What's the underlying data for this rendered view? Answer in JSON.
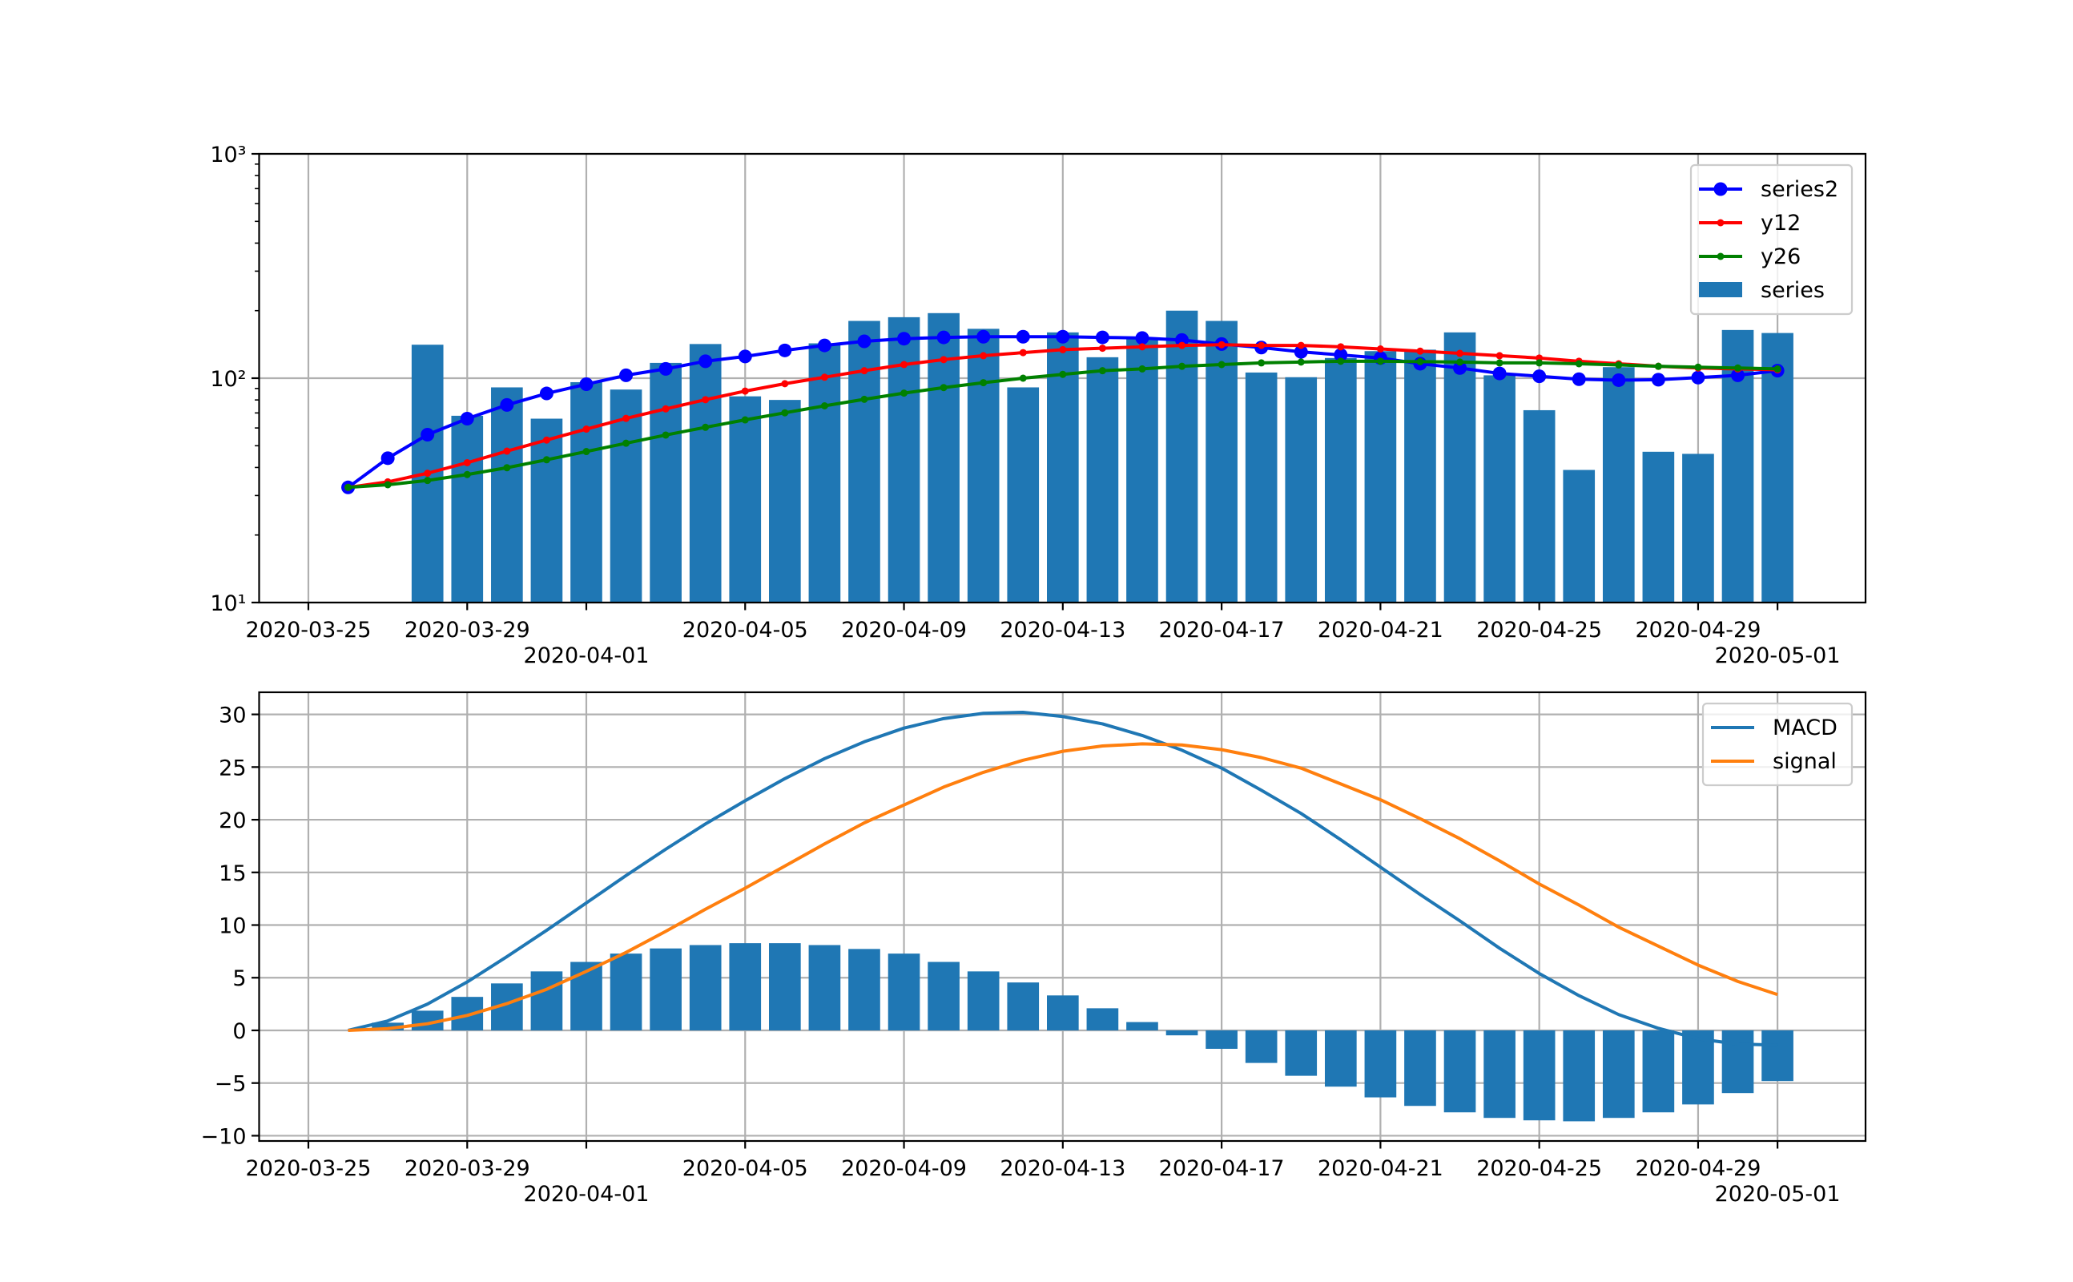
{
  "chart_data": [
    {
      "type": "bar+line",
      "yscale": "log",
      "ylim": [
        10,
        1000
      ],
      "grid": true,
      "legend_position": "top-right",
      "x_tick_labels": [
        "2020-03-25",
        "2020-03-29",
        "2020-04-01",
        "2020-04-05",
        "2020-04-09",
        "2020-04-13",
        "2020-04-17",
        "2020-04-21",
        "2020-04-25",
        "2020-04-29",
        "2020-05-01"
      ],
      "y_ticks": [
        10,
        100,
        1000
      ],
      "y_tick_labels": [
        "10¹",
        "10²",
        "10³"
      ],
      "x": [
        "2020-03-26",
        "2020-03-27",
        "2020-03-28",
        "2020-03-29",
        "2020-03-30",
        "2020-03-31",
        "2020-04-01",
        "2020-04-02",
        "2020-04-03",
        "2020-04-04",
        "2020-04-05",
        "2020-04-06",
        "2020-04-07",
        "2020-04-08",
        "2020-04-09",
        "2020-04-10",
        "2020-04-11",
        "2020-04-12",
        "2020-04-13",
        "2020-04-14",
        "2020-04-15",
        "2020-04-16",
        "2020-04-17",
        "2020-04-18",
        "2020-04-19",
        "2020-04-20",
        "2020-04-21",
        "2020-04-22",
        "2020-04-23",
        "2020-04-24",
        "2020-04-25",
        "2020-04-26",
        "2020-04-27",
        "2020-04-28",
        "2020-04-29",
        "2020-04-30",
        "2020-05-01"
      ],
      "series": [
        {
          "name": "series2",
          "kind": "line",
          "marker": "circle",
          "color": "#0000ff",
          "values": [
            32.6,
            44,
            56,
            66,
            76,
            85.5,
            94,
            103,
            110,
            119,
            125,
            133,
            140,
            146,
            150,
            152,
            153,
            153,
            153,
            152,
            151,
            148,
            142,
            137,
            131,
            127,
            123,
            116,
            111,
            105,
            102,
            99,
            98,
            98.5,
            100.6,
            103,
            108
          ]
        },
        {
          "name": "y12",
          "kind": "line",
          "marker": "dot",
          "color": "#ff0000",
          "values": [
            32.6,
            34.5,
            37.7,
            42,
            47.3,
            53,
            59.3,
            66.2,
            73,
            80.2,
            87.6,
            94.5,
            101,
            108,
            115,
            121,
            126,
            130,
            134,
            136,
            138,
            140,
            141,
            140,
            140,
            138,
            135,
            132,
            129,
            126,
            123,
            119,
            116,
            113,
            111,
            110,
            109
          ]
        },
        {
          "name": "y26",
          "kind": "line",
          "marker": "dot",
          "color": "#008000",
          "values": [
            32.6,
            33.5,
            35,
            37.2,
            39.9,
            43.3,
            47.1,
            51.3,
            55.8,
            60.4,
            65.2,
            70.1,
            75.3,
            80.5,
            85.8,
            90.8,
            95.5,
            100,
            104,
            108,
            110,
            113,
            115,
            117,
            118,
            119,
            119,
            118.5,
            118,
            117,
            117,
            116,
            114.5,
            113,
            112,
            111,
            110
          ]
        },
        {
          "name": "series",
          "kind": "bar",
          "color": "#1f77b4",
          "values": [
            null,
            null,
            141,
            68,
            91,
            66,
            96,
            89,
            117,
            142,
            83,
            80,
            143,
            180,
            187,
            195,
            166,
            91,
            160,
            124,
            151,
            200,
            180,
            106,
            101,
            123,
            132,
            134,
            160,
            103,
            72,
            39,
            112,
            47,
            46,
            164,
            159
          ]
        }
      ]
    },
    {
      "type": "bar+line",
      "yscale": "linear",
      "ylim": [
        -10.5,
        32.1
      ],
      "grid": true,
      "legend_position": "top-right",
      "x_tick_labels": [
        "2020-03-25",
        "2020-03-29",
        "2020-04-01",
        "2020-04-05",
        "2020-04-09",
        "2020-04-13",
        "2020-04-17",
        "2020-04-21",
        "2020-04-25",
        "2020-04-29",
        "2020-05-01"
      ],
      "y_ticks": [
        -10,
        -5,
        0,
        5,
        10,
        15,
        20,
        25,
        30
      ],
      "y_tick_labels": [
        "−10",
        "−5",
        "0",
        "5",
        "10",
        "15",
        "20",
        "25",
        "30"
      ],
      "x": [
        "2020-03-26",
        "2020-03-27",
        "2020-03-28",
        "2020-03-29",
        "2020-03-30",
        "2020-03-31",
        "2020-04-01",
        "2020-04-02",
        "2020-04-03",
        "2020-04-04",
        "2020-04-05",
        "2020-04-06",
        "2020-04-07",
        "2020-04-08",
        "2020-04-09",
        "2020-04-10",
        "2020-04-11",
        "2020-04-12",
        "2020-04-13",
        "2020-04-14",
        "2020-04-15",
        "2020-04-16",
        "2020-04-17",
        "2020-04-18",
        "2020-04-19",
        "2020-04-20",
        "2020-04-21",
        "2020-04-22",
        "2020-04-23",
        "2020-04-24",
        "2020-04-25",
        "2020-04-26",
        "2020-04-27",
        "2020-04-28",
        "2020-04-29",
        "2020-04-30",
        "2020-05-01"
      ],
      "series": [
        {
          "name": "MACD",
          "kind": "line",
          "color": "#1f77b4",
          "values": [
            0,
            0.9,
            2.5,
            4.6,
            7.0,
            9.5,
            12.1,
            14.7,
            17.2,
            19.6,
            21.8,
            23.9,
            25.8,
            27.4,
            28.7,
            29.6,
            30.1,
            30.2,
            29.8,
            29.1,
            28.0,
            26.6,
            24.9,
            22.8,
            20.6,
            18.1,
            15.5,
            12.9,
            10.4,
            7.8,
            5.4,
            3.3,
            1.5,
            0.2,
            -0.8,
            -1.3,
            -1.4
          ]
        },
        {
          "name": "signal",
          "kind": "line",
          "color": "#ff7f0e",
          "values": [
            0,
            0.17,
            0.63,
            1.42,
            2.54,
            3.9,
            5.6,
            7.4,
            9.4,
            11.5,
            13.5,
            15.6,
            17.7,
            19.7,
            21.4,
            23.1,
            24.5,
            25.65,
            26.5,
            27.0,
            27.2,
            27.1,
            26.65,
            25.9,
            24.9,
            23.4,
            21.9,
            20.1,
            18.2,
            16.1,
            13.9,
            11.9,
            9.8,
            8.0,
            6.2,
            4.65,
            3.4
          ]
        },
        {
          "kind": "bar",
          "color": "#1f77b4",
          "values": [
            0,
            0.73,
            1.87,
            3.18,
            4.46,
            5.6,
            6.5,
            7.29,
            7.78,
            8.1,
            8.28,
            8.28,
            8.1,
            7.73,
            7.29,
            6.5,
            5.6,
            4.55,
            3.32,
            2.1,
            0.79,
            -0.47,
            -1.75,
            -3.09,
            -4.31,
            -5.34,
            -6.36,
            -7.17,
            -7.78,
            -8.31,
            -8.54,
            -8.63,
            -8.31,
            -7.78,
            -7.03,
            -5.95,
            -4.81
          ]
        }
      ]
    }
  ]
}
